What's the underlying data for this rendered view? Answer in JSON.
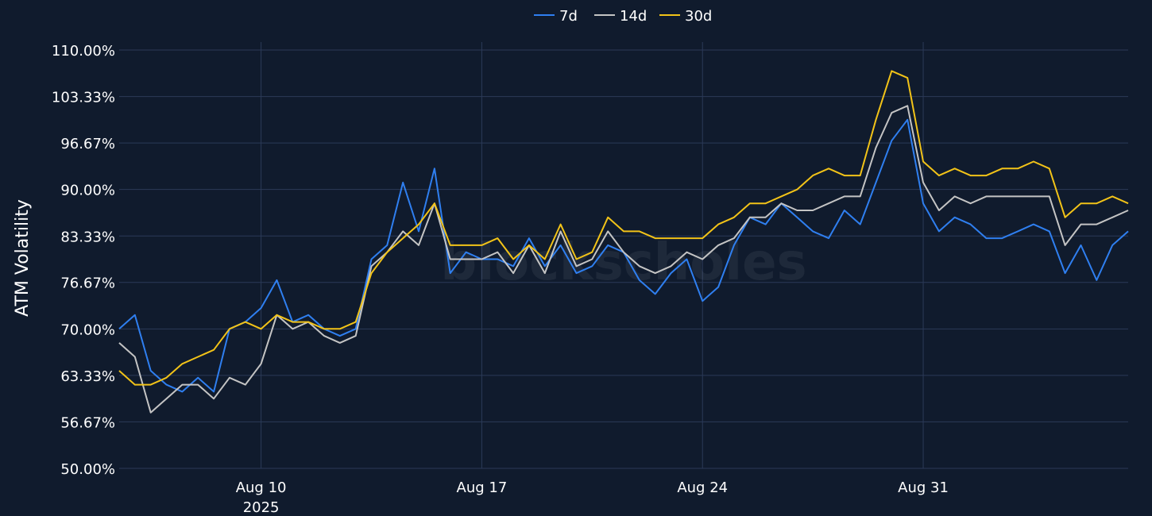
{
  "watermark": "blockscholes",
  "chart_data": {
    "type": "line",
    "title": "",
    "xlabel": "",
    "ylabel": "ATM Volatility",
    "ylim": [
      50,
      110
    ],
    "y_ticks": [
      "50.00%",
      "56.67%",
      "63.33%",
      "70.00%",
      "76.67%",
      "83.33%",
      "90.00%",
      "96.67%",
      "103.33%",
      "110.00%"
    ],
    "y_tick_values": [
      50,
      56.67,
      63.33,
      70,
      76.67,
      83.33,
      90,
      96.67,
      103.33,
      110
    ],
    "xlim": [
      "2025-08-05T12:00",
      "2025-09-06T12:00"
    ],
    "x_ticks": [
      {
        "label": "Aug 10",
        "sublabel": "2025",
        "date": "2025-08-10"
      },
      {
        "label": "Aug 17",
        "sublabel": "",
        "date": "2025-08-17"
      },
      {
        "label": "Aug 24",
        "sublabel": "",
        "date": "2025-08-24"
      },
      {
        "label": "Aug 31",
        "sublabel": "",
        "date": "2025-08-31"
      }
    ],
    "grid": true,
    "legend_position": "top-center",
    "x": [
      "2025-08-05T12:00",
      "2025-08-06T00:00",
      "2025-08-06T12:00",
      "2025-08-07T00:00",
      "2025-08-07T12:00",
      "2025-08-08T00:00",
      "2025-08-08T12:00",
      "2025-08-09T00:00",
      "2025-08-09T12:00",
      "2025-08-10T00:00",
      "2025-08-10T12:00",
      "2025-08-11T00:00",
      "2025-08-11T12:00",
      "2025-08-12T00:00",
      "2025-08-12T12:00",
      "2025-08-13T00:00",
      "2025-08-13T12:00",
      "2025-08-14T00:00",
      "2025-08-14T12:00",
      "2025-08-15T00:00",
      "2025-08-15T12:00",
      "2025-08-16T00:00",
      "2025-08-16T12:00",
      "2025-08-17T00:00",
      "2025-08-17T12:00",
      "2025-08-18T00:00",
      "2025-08-18T12:00",
      "2025-08-19T00:00",
      "2025-08-19T12:00",
      "2025-08-20T00:00",
      "2025-08-20T12:00",
      "2025-08-21T00:00",
      "2025-08-21T12:00",
      "2025-08-22T00:00",
      "2025-08-22T12:00",
      "2025-08-23T00:00",
      "2025-08-23T12:00",
      "2025-08-24T00:00",
      "2025-08-24T12:00",
      "2025-08-25T00:00",
      "2025-08-25T12:00",
      "2025-08-26T00:00",
      "2025-08-26T12:00",
      "2025-08-27T00:00",
      "2025-08-27T12:00",
      "2025-08-28T00:00",
      "2025-08-28T12:00",
      "2025-08-29T00:00",
      "2025-08-29T12:00",
      "2025-08-30T00:00",
      "2025-08-30T12:00",
      "2025-08-31T00:00",
      "2025-08-31T12:00",
      "2025-09-01T00:00",
      "2025-09-01T12:00",
      "2025-09-02T00:00",
      "2025-09-02T12:00",
      "2025-09-03T00:00",
      "2025-09-03T12:00",
      "2025-09-04T00:00",
      "2025-09-04T12:00",
      "2025-09-05T00:00",
      "2025-09-05T12:00",
      "2025-09-06T00:00",
      "2025-09-06T12:00"
    ],
    "series": [
      {
        "name": "7d",
        "color": "#2f7ff0",
        "values": [
          70,
          72,
          64,
          62,
          61,
          63,
          61,
          70,
          71,
          73,
          77,
          71,
          72,
          70,
          69,
          70,
          80,
          82,
          91,
          84,
          93,
          78,
          81,
          80,
          80,
          79,
          83,
          79,
          82,
          78,
          79,
          82,
          81,
          77,
          75,
          78,
          80,
          74,
          76,
          82,
          86,
          85,
          88,
          86,
          84,
          83,
          87,
          85,
          91,
          97,
          100,
          88,
          84,
          86,
          85,
          83,
          83,
          84,
          85,
          84,
          78,
          82,
          77,
          82,
          84
        ]
      },
      {
        "name": "14d",
        "color": "#c4c4c4",
        "values": [
          68,
          66,
          58,
          60,
          62,
          62,
          60,
          63,
          62,
          65,
          72,
          70,
          71,
          69,
          68,
          69,
          79,
          81,
          84,
          82,
          88,
          80,
          80,
          80,
          81,
          78,
          82,
          78,
          84,
          79,
          80,
          84,
          81,
          79,
          78,
          79,
          81,
          80,
          82,
          83,
          86,
          86,
          88,
          87,
          87,
          88,
          89,
          89,
          96,
          101,
          102,
          91,
          87,
          89,
          88,
          89,
          89,
          89,
          89,
          89,
          82,
          85,
          85,
          86,
          87
        ]
      },
      {
        "name": "30d",
        "color": "#f2c318",
        "values": [
          64,
          62,
          62,
          63,
          65,
          66,
          67,
          70,
          71,
          70,
          72,
          71,
          71,
          70,
          70,
          71,
          78,
          81,
          83,
          85,
          88,
          82,
          82,
          82,
          83,
          80,
          82,
          80,
          85,
          80,
          81,
          86,
          84,
          84,
          83,
          83,
          83,
          83,
          85,
          86,
          88,
          88,
          89,
          90,
          92,
          93,
          92,
          92,
          100,
          107,
          106,
          94,
          92,
          93,
          92,
          92,
          93,
          93,
          94,
          93,
          86,
          88,
          88,
          89,
          88
        ]
      }
    ]
  }
}
